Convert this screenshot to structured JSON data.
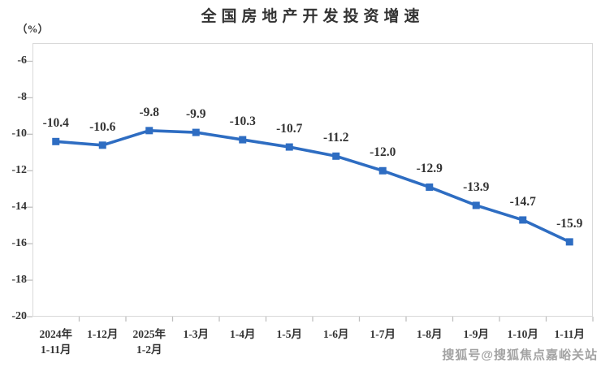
{
  "title": "全国房地产开发投资增速",
  "unit_label": "（%）",
  "watermark": "搜狐号@搜狐焦点嘉峪关站",
  "colors": {
    "line": "#2e6dc2",
    "marker": "#2e6dc2",
    "title_text": "#333333",
    "label_text": "#333333",
    "plot_border": "#d9d9d9",
    "tick": "#bfbfbf",
    "watermark": "#a3a3a3",
    "background": "#ffffff"
  },
  "chart_data": {
    "type": "line",
    "title": "全国房地产开发投资增速",
    "ylabel": "（%）",
    "categories": [
      [
        "2024年",
        "1-11月"
      ],
      [
        "1-12月"
      ],
      [
        "2025年",
        "1-2月"
      ],
      [
        "1-3月"
      ],
      [
        "1-4月"
      ],
      [
        "1-5月"
      ],
      [
        "1-6月"
      ],
      [
        "1-7月"
      ],
      [
        "1-8月"
      ],
      [
        "1-9月"
      ],
      [
        "1-10月"
      ],
      [
        "1-11月"
      ]
    ],
    "series": [
      {
        "name": "全国房地产开发投资增速",
        "values": [
          -10.4,
          -10.6,
          -9.8,
          -9.9,
          -10.3,
          -10.7,
          -11.2,
          -12.0,
          -12.9,
          -13.9,
          -14.7,
          -15.9
        ],
        "labels": [
          "-10.4",
          "-10.6",
          "-9.8",
          "-9.9",
          "-10.3",
          "-10.7",
          "-11.2",
          "-12.0",
          "-12.9",
          "-13.9",
          "-14.7",
          "-15.9"
        ]
      }
    ],
    "y_ticks": [
      -6,
      -8,
      -10,
      -12,
      -14,
      -16,
      -18,
      -20
    ],
    "ylim": [
      -20,
      -5
    ],
    "grid": false,
    "legend_position": "none",
    "marker": "square"
  }
}
